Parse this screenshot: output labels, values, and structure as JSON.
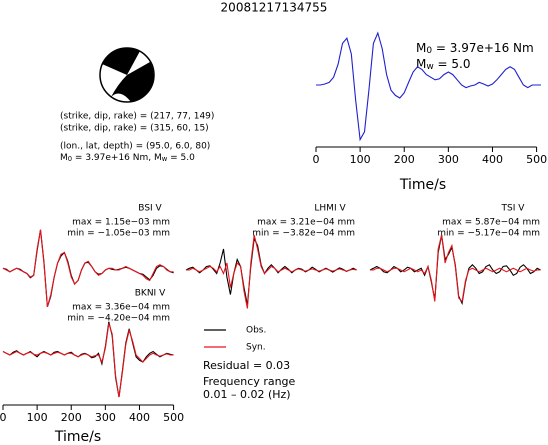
{
  "title": "20081217134755",
  "focal_lines": [
    "(strike, dip, rake) = (217, 77, 149)",
    "(strike, dip, rake) = (315, 60, 15)",
    "(lon., lat, depth) = (95.0, 6.0, 80)"
  ],
  "moment_text": [
    "M",
    "0",
    " = 3.97e+16 Nm, M",
    "w",
    " = 5.0"
  ],
  "legend": [
    {
      "label": "Obs.",
      "color": "#000000"
    },
    {
      "label": "Syn.",
      "color": "#e8141b"
    }
  ],
  "residual": "Residual = 0.03",
  "frequency_title": "Frequency range",
  "frequency_range": "0.01 – 0.02 (Hz)",
  "chart_data": [
    {
      "type": "line",
      "moment_label": [
        "M",
        "0",
        " = 3.97e+16 Nm"
      ],
      "mw_label": [
        "M",
        "w",
        " = 5.0"
      ],
      "x_label": "Time/s",
      "xlim": [
        0,
        510
      ],
      "ylim": [
        -1.1,
        1.1
      ],
      "xticks": [
        0,
        100,
        200,
        300,
        400,
        500
      ],
      "x": [
        0,
        10,
        20,
        30,
        40,
        50,
        60,
        70,
        80,
        90,
        100,
        110,
        120,
        130,
        140,
        150,
        160,
        170,
        180,
        190,
        200,
        210,
        220,
        230,
        240,
        250,
        260,
        270,
        280,
        290,
        300,
        310,
        320,
        330,
        340,
        350,
        360,
        370,
        380,
        390,
        400,
        410,
        420,
        430,
        440,
        450,
        460,
        470,
        480,
        490,
        500,
        510
      ],
      "series": [
        {
          "color": "#2020d0",
          "values": [
            0,
            0,
            0.02,
            0.05,
            0.15,
            0.4,
            0.8,
            0.9,
            0.6,
            -0.3,
            -1.05,
            -0.9,
            -0.1,
            0.8,
            1.0,
            0.7,
            0.2,
            -0.1,
            -0.2,
            -0.25,
            -0.15,
            0.05,
            0.25,
            0.35,
            0.3,
            0.2,
            0.15,
            0.1,
            0.12,
            0.2,
            0.25,
            0.2,
            0.1,
            0,
            -0.05,
            -0.02,
            0,
            0.05,
            0.02,
            -0.02,
            0.02,
            0.1,
            0.2,
            0.3,
            0.35,
            0.3,
            0.15,
            0,
            -0.05,
            0,
            0,
            0
          ]
        }
      ]
    },
    {
      "type": "line",
      "title": "BSI V",
      "annotations": [
        "max = 1.15e−03 mm",
        "min = −1.05e−03 mm"
      ],
      "xlim": [
        0,
        510
      ],
      "ylim": [
        -1.2,
        1.2
      ],
      "x": [
        0,
        10,
        20,
        30,
        40,
        50,
        60,
        70,
        80,
        90,
        100,
        110,
        120,
        130,
        140,
        150,
        160,
        170,
        180,
        190,
        200,
        210,
        220,
        230,
        240,
        250,
        260,
        270,
        280,
        290,
        300,
        310,
        320,
        330,
        340,
        350,
        360,
        370,
        380,
        390,
        400,
        410,
        420,
        430,
        440,
        450,
        460,
        470,
        480,
        490,
        500
      ],
      "series": [
        {
          "color": "#000000",
          "values": [
            0.05,
            0.02,
            -0.05,
            0,
            0.05,
            0.02,
            -0.05,
            -0.1,
            -0.22,
            -0.15,
            0.55,
            1.15,
            0.25,
            -1.05,
            -0.75,
            -0.2,
            0.2,
            0.4,
            0.5,
            0.25,
            -0.15,
            -0.4,
            -0.3,
            0,
            0.2,
            0.22,
            0.1,
            -0.05,
            -0.12,
            -0.1,
            0,
            0.05,
            0.02,
            0,
            0.02,
            0.05,
            0.08,
            0.05,
            0,
            -0.05,
            -0.1,
            -0.12,
            -0.2,
            -0.28,
            -0.15,
            0.05,
            0.12,
            0.1,
            0.02,
            -0.05,
            -0.08
          ]
        },
        {
          "color": "#e8141b",
          "values": [
            0.05,
            0,
            -0.05,
            0,
            0.05,
            0,
            -0.05,
            -0.1,
            -0.2,
            -0.15,
            0.6,
            1.15,
            0.2,
            -1.05,
            -0.7,
            -0.2,
            0.2,
            0.45,
            0.5,
            0.2,
            -0.2,
            -0.4,
            -0.3,
            0,
            0.2,
            0.25,
            0.1,
            -0.05,
            -0.15,
            -0.1,
            0,
            0.05,
            0.05,
            0,
            0,
            0.05,
            0.1,
            0.05,
            0,
            -0.05,
            -0.1,
            -0.15,
            -0.25,
            -0.3,
            -0.1,
            0.1,
            0.15,
            0.1,
            0,
            -0.05,
            -0.05
          ]
        }
      ]
    },
    {
      "type": "line",
      "title": "LHMI V",
      "annotations": [
        "max = 3.21e−04 mm",
        "min = −3.82e−04 mm"
      ],
      "xlim": [
        0,
        510
      ],
      "ylim": [
        -1.2,
        1.2
      ],
      "x": [
        0,
        10,
        20,
        30,
        40,
        50,
        60,
        70,
        80,
        90,
        100,
        110,
        120,
        130,
        140,
        150,
        160,
        170,
        180,
        190,
        200,
        210,
        220,
        230,
        240,
        250,
        260,
        270,
        280,
        290,
        300,
        310,
        320,
        330,
        340,
        350,
        360,
        370,
        380,
        390,
        400,
        410,
        420,
        430,
        440,
        450,
        460,
        470,
        480,
        490,
        500
      ],
      "series": [
        {
          "color": "#000000",
          "values": [
            0,
            0.05,
            0.08,
            0,
            -0.08,
            0,
            0.1,
            0.12,
            0.02,
            -0.1,
            0.2,
            0.6,
            -0.2,
            -0.7,
            -0.1,
            0.3,
            0.1,
            -0.5,
            -1.0,
            0.1,
            0.9,
            0.7,
            0.15,
            -0.1,
            0.05,
            0.15,
            0.05,
            -0.08,
            0.02,
            0.1,
            0.02,
            -0.08,
            0,
            0.05,
            0.02,
            -0.05,
            0,
            0.08,
            0.02,
            -0.05,
            0,
            0.05,
            0,
            -0.06,
            0,
            0.06,
            0.02,
            -0.04,
            0,
            0.05,
            0
          ]
        },
        {
          "color": "#e8141b",
          "values": [
            0,
            0,
            0.05,
            0,
            -0.05,
            0,
            0.05,
            0.1,
            0.05,
            -0.05,
            0.1,
            -0.1,
            0.2,
            -0.5,
            -0.1,
            0.2,
            0.1,
            -0.6,
            -1.1,
            0.2,
            1.0,
            0.6,
            0.1,
            -0.1,
            0,
            0.1,
            0.05,
            -0.05,
            0,
            0.05,
            0,
            -0.05,
            0,
            0.03,
            0,
            -0.03,
            0,
            0.03,
            0,
            -0.03,
            0,
            0.03,
            0,
            -0.03,
            0,
            0.03,
            0,
            -0.03,
            0,
            0.02,
            0
          ]
        }
      ]
    },
    {
      "type": "line",
      "title": "TSI V",
      "annotations": [
        "max = 5.87e−04 mm",
        "min = −5.17e−04 mm"
      ],
      "xlim": [
        0,
        510
      ],
      "ylim": [
        -1.2,
        1.2
      ],
      "x": [
        0,
        10,
        20,
        30,
        40,
        50,
        60,
        70,
        80,
        90,
        100,
        110,
        120,
        130,
        140,
        150,
        160,
        170,
        180,
        190,
        200,
        210,
        220,
        230,
        240,
        250,
        260,
        270,
        280,
        290,
        300,
        310,
        320,
        330,
        340,
        350,
        360,
        370,
        380,
        390,
        400,
        410,
        420,
        430,
        440,
        450,
        460,
        470,
        480,
        490,
        500
      ],
      "series": [
        {
          "color": "#000000",
          "values": [
            0,
            0.05,
            0.1,
            0.05,
            -0.05,
            -0.08,
            0,
            0.1,
            0.05,
            -0.05,
            0,
            0.08,
            0.05,
            -0.05,
            0,
            0.05,
            -0.15,
            0.1,
            -0.35,
            -0.85,
            0.5,
            1.0,
            0.3,
            0.45,
            0.65,
            0.15,
            -0.75,
            -0.95,
            -0.35,
            0.05,
            0.15,
            0.05,
            -0.1,
            -0.05,
            0.1,
            0.15,
            0,
            -0.1,
            -0.05,
            0.1,
            0.12,
            0,
            -0.15,
            -0.1,
            0.08,
            0.15,
            0.05,
            -0.1,
            -0.05,
            0.05,
            0
          ]
        },
        {
          "color": "#e8141b",
          "values": [
            0,
            0,
            0.05,
            0.05,
            0,
            -0.05,
            0,
            0.05,
            0.05,
            0,
            -0.05,
            0,
            0.05,
            0,
            -0.05,
            0,
            -0.1,
            0.1,
            -0.3,
            -0.9,
            0.6,
            1.0,
            0.2,
            0.5,
            0.7,
            0.1,
            -0.8,
            -0.9,
            -0.3,
            0,
            0.05,
            0,
            -0.05,
            0,
            0.05,
            0,
            -0.05,
            0,
            0.05,
            0,
            -0.05,
            0,
            0.05,
            0,
            -0.05,
            0,
            0.05,
            0,
            -0.03,
            0,
            0
          ]
        }
      ]
    },
    {
      "type": "line",
      "title": "BKNI V",
      "annotations": [
        "max = 3.36e−04 mm",
        "min = −4.20e−04 mm"
      ],
      "x_label": "Time/s",
      "xlim": [
        0,
        510
      ],
      "ylim": [
        -1.2,
        1.2
      ],
      "xticks": [
        0,
        100,
        200,
        300,
        400,
        500
      ],
      "x": [
        0,
        10,
        20,
        30,
        40,
        50,
        60,
        70,
        80,
        90,
        100,
        110,
        120,
        130,
        140,
        150,
        160,
        170,
        180,
        190,
        200,
        210,
        220,
        230,
        240,
        250,
        260,
        270,
        280,
        290,
        300,
        310,
        320,
        330,
        340,
        350,
        360,
        370,
        380,
        390,
        400,
        410,
        420,
        430,
        440,
        450,
        460,
        470,
        480,
        490,
        500
      ],
      "series": [
        {
          "color": "#000000",
          "values": [
            0.1,
            0.05,
            0,
            0.08,
            0.12,
            0.05,
            0,
            0.05,
            0.1,
            0.02,
            -0.05,
            0.05,
            0.1,
            0.05,
            0,
            0.08,
            0.1,
            0.05,
            0,
            0.05,
            0.08,
            0,
            -0.05,
            0.02,
            0.05,
            0,
            -0.08,
            -0.05,
            0.05,
            -0.25,
            0.25,
            0.95,
            0.55,
            -0.65,
            -1.2,
            -0.45,
            0.35,
            0.75,
            0.35,
            -0.05,
            -0.15,
            -0.2,
            -0.05,
            0.05,
            0.1,
            0.02,
            -0.05,
            0,
            0.05,
            0.02,
            0
          ]
        },
        {
          "color": "#e8141b",
          "values": [
            0.1,
            0.05,
            0,
            0.05,
            0.1,
            0.05,
            0,
            0.05,
            0.08,
            0.02,
            0,
            0.05,
            0.08,
            0.05,
            0,
            0.05,
            0.08,
            0.05,
            0,
            0.05,
            0.05,
            0,
            -0.05,
            0,
            0.03,
            0,
            -0.05,
            -0.02,
            0,
            -0.2,
            0.2,
            0.9,
            0.6,
            -0.6,
            -1.2,
            -0.5,
            0.3,
            0.7,
            0.4,
            0,
            -0.1,
            -0.2,
            -0.1,
            0,
            0.05,
            0,
            -0.03,
            0,
            0.03,
            0,
            0
          ]
        }
      ]
    }
  ]
}
